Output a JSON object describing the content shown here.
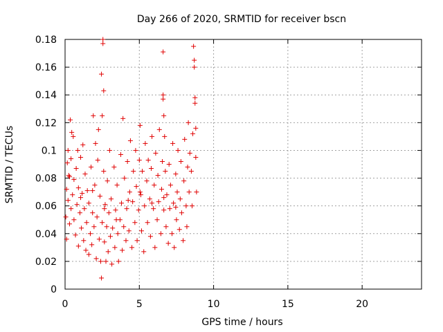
{
  "chart_data": {
    "type": "scatter",
    "title": "Day 266 of 2020, SRMTID for receiver bscn",
    "xlabel": "GPS time / hours",
    "ylabel": "SRMTID / TECUs",
    "xlim": [
      0,
      24
    ],
    "ylim": [
      0,
      0.18
    ],
    "x_ticks": [
      "0",
      "5",
      "10",
      "15",
      "20"
    ],
    "y_ticks": [
      "0",
      "0.02",
      "0.04",
      "0.06",
      "0.08",
      "0.1",
      "0.12",
      "0.14",
      "0.16",
      "0.18"
    ],
    "grid": true,
    "marker": "+",
    "series": [
      {
        "name": "SRMTID",
        "color": "#e00000",
        "points": [
          [
            0.05,
            0.052
          ],
          [
            0.1,
            0.036
          ],
          [
            0.1,
            0.072
          ],
          [
            0.15,
            0.091
          ],
          [
            0.2,
            0.064
          ],
          [
            0.2,
            0.1
          ],
          [
            0.3,
            0.047
          ],
          [
            0.3,
            0.081
          ],
          [
            0.35,
            0.122
          ],
          [
            0.4,
            0.058
          ],
          [
            0.4,
            0.094
          ],
          [
            0.45,
            0.113
          ],
          [
            0.5,
            0.068
          ],
          [
            0.55,
            0.11
          ],
          [
            0.6,
            0.05
          ],
          [
            0.6,
            0.079
          ],
          [
            0.7,
            0.039
          ],
          [
            0.75,
            0.087
          ],
          [
            0.8,
            0.061
          ],
          [
            0.85,
            0.1
          ],
          [
            0.9,
            0.031
          ],
          [
            0.9,
            0.073
          ],
          [
            1.0,
            0.055
          ],
          [
            1.05,
            0.095
          ],
          [
            1.1,
            0.044
          ],
          [
            1.15,
            0.069
          ],
          [
            1.2,
            0.104
          ],
          [
            1.25,
            0.035
          ],
          [
            1.3,
            0.058
          ],
          [
            1.35,
            0.083
          ],
          [
            1.4,
            0.028
          ],
          [
            1.45,
            0.048
          ],
          [
            1.5,
            0.071
          ],
          [
            1.6,
            0.025
          ],
          [
            1.6,
            0.062
          ],
          [
            1.7,
            0.04
          ],
          [
            1.75,
            0.088
          ],
          [
            1.8,
            0.032
          ],
          [
            1.85,
            0.055
          ],
          [
            1.9,
            0.125
          ],
          [
            1.95,
            0.045
          ],
          [
            2.0,
            0.075
          ],
          [
            2.05,
            0.105
          ],
          [
            2.1,
            0.022
          ],
          [
            2.15,
            0.052
          ],
          [
            2.2,
            0.093
          ],
          [
            2.25,
            0.115
          ],
          [
            2.3,
            0.036
          ],
          [
            2.35,
            0.067
          ],
          [
            2.4,
            0.02
          ],
          [
            2.45,
            0.155
          ],
          [
            2.45,
            0.008
          ],
          [
            2.5,
            0.048
          ],
          [
            2.5,
            0.125
          ],
          [
            2.55,
            0.177
          ],
          [
            2.55,
            0.18
          ],
          [
            2.6,
            0.143
          ],
          [
            2.6,
            0.085
          ],
          [
            2.65,
            0.034
          ],
          [
            2.7,
            0.061
          ],
          [
            2.75,
            0.02
          ],
          [
            2.8,
            0.045
          ],
          [
            2.85,
            0.078
          ],
          [
            2.9,
            0.027
          ],
          [
            2.95,
            0.055
          ],
          [
            3.0,
            0.1
          ],
          [
            3.05,
            0.038
          ],
          [
            3.1,
            0.065
          ],
          [
            3.15,
            0.018
          ],
          [
            3.2,
            0.044
          ],
          [
            3.3,
            0.088
          ],
          [
            3.35,
            0.03
          ],
          [
            3.4,
            0.057
          ],
          [
            3.5,
            0.075
          ],
          [
            3.55,
            0.04
          ],
          [
            3.6,
            0.02
          ],
          [
            3.7,
            0.05
          ],
          [
            3.75,
            0.097
          ],
          [
            3.8,
            0.062
          ],
          [
            3.85,
            0.028
          ],
          [
            3.9,
            0.123
          ],
          [
            3.95,
            0.045
          ],
          [
            4.0,
            0.08
          ],
          [
            4.1,
            0.035
          ],
          [
            4.15,
            0.058
          ],
          [
            4.2,
            0.092
          ],
          [
            4.3,
            0.042
          ],
          [
            4.35,
            0.07
          ],
          [
            4.4,
            0.107
          ],
          [
            4.5,
            0.03
          ],
          [
            4.55,
            0.063
          ],
          [
            4.6,
            0.085
          ],
          [
            4.7,
            0.048
          ],
          [
            4.75,
            0.1
          ],
          [
            4.8,
            0.074
          ],
          [
            4.85,
            0.035
          ],
          [
            4.95,
            0.057
          ],
          [
            5.0,
            0.093
          ],
          [
            5.05,
            0.118
          ],
          [
            5.1,
            0.068
          ],
          [
            5.15,
            0.042
          ],
          [
            5.2,
            0.085
          ],
          [
            5.3,
            0.027
          ],
          [
            5.35,
            0.06
          ],
          [
            5.4,
            0.105
          ],
          [
            5.5,
            0.078
          ],
          [
            5.55,
            0.048
          ],
          [
            5.6,
            0.093
          ],
          [
            5.7,
            0.065
          ],
          [
            5.75,
            0.038
          ],
          [
            5.8,
            0.087
          ],
          [
            5.85,
            0.11
          ],
          [
            5.95,
            0.058
          ],
          [
            6.0,
            0.075
          ],
          [
            6.05,
            0.03
          ],
          [
            6.1,
            0.098
          ],
          [
            6.2,
            0.05
          ],
          [
            6.25,
            0.082
          ],
          [
            6.3,
            0.063
          ],
          [
            6.35,
            0.115
          ],
          [
            6.45,
            0.04
          ],
          [
            6.5,
            0.072
          ],
          [
            6.55,
            0.092
          ],
          [
            6.6,
            0.137
          ],
          [
            6.6,
            0.14
          ],
          [
            6.6,
            0.171
          ],
          [
            6.65,
            0.125
          ],
          [
            6.65,
            0.057
          ],
          [
            6.7,
            0.11
          ],
          [
            6.75,
            0.085
          ],
          [
            6.8,
            0.045
          ],
          [
            6.85,
            0.068
          ],
          [
            6.95,
            0.033
          ],
          [
            7.0,
            0.09
          ],
          [
            7.05,
            0.058
          ],
          [
            7.1,
            0.075
          ],
          [
            7.2,
            0.04
          ],
          [
            7.25,
            0.105
          ],
          [
            7.3,
            0.062
          ],
          [
            7.35,
            0.03
          ],
          [
            7.45,
            0.083
          ],
          [
            7.5,
            0.05
          ],
          [
            7.55,
            0.07
          ],
          [
            7.6,
            0.1
          ],
          [
            7.7,
            0.043
          ],
          [
            7.75,
            0.065
          ],
          [
            7.8,
            0.092
          ],
          [
            7.85,
            0.055
          ],
          [
            7.95,
            0.035
          ],
          [
            8.0,
            0.078
          ],
          [
            8.05,
            0.108
          ],
          [
            8.15,
            0.06
          ],
          [
            8.2,
            0.045
          ],
          [
            8.25,
            0.088
          ],
          [
            8.3,
            0.12
          ],
          [
            8.35,
            0.07
          ],
          [
            8.4,
            0.098
          ],
          [
            8.5,
            0.085
          ],
          [
            8.55,
            0.06
          ],
          [
            8.6,
            0.112
          ],
          [
            8.65,
            0.175
          ],
          [
            8.7,
            0.165
          ],
          [
            8.7,
            0.16
          ],
          [
            8.75,
            0.138
          ],
          [
            8.75,
            0.134
          ],
          [
            8.8,
            0.095
          ],
          [
            8.8,
            0.116
          ],
          [
            8.85,
            0.07
          ],
          [
            0.25,
            0.082
          ],
          [
            1.05,
            0.066
          ],
          [
            1.85,
            0.071
          ],
          [
            2.65,
            0.058
          ],
          [
            3.45,
            0.05
          ],
          [
            4.25,
            0.064
          ],
          [
            5.05,
            0.07
          ],
          [
            5.85,
            0.062
          ],
          [
            6.65,
            0.066
          ],
          [
            7.45,
            0.059
          ]
        ]
      }
    ]
  }
}
